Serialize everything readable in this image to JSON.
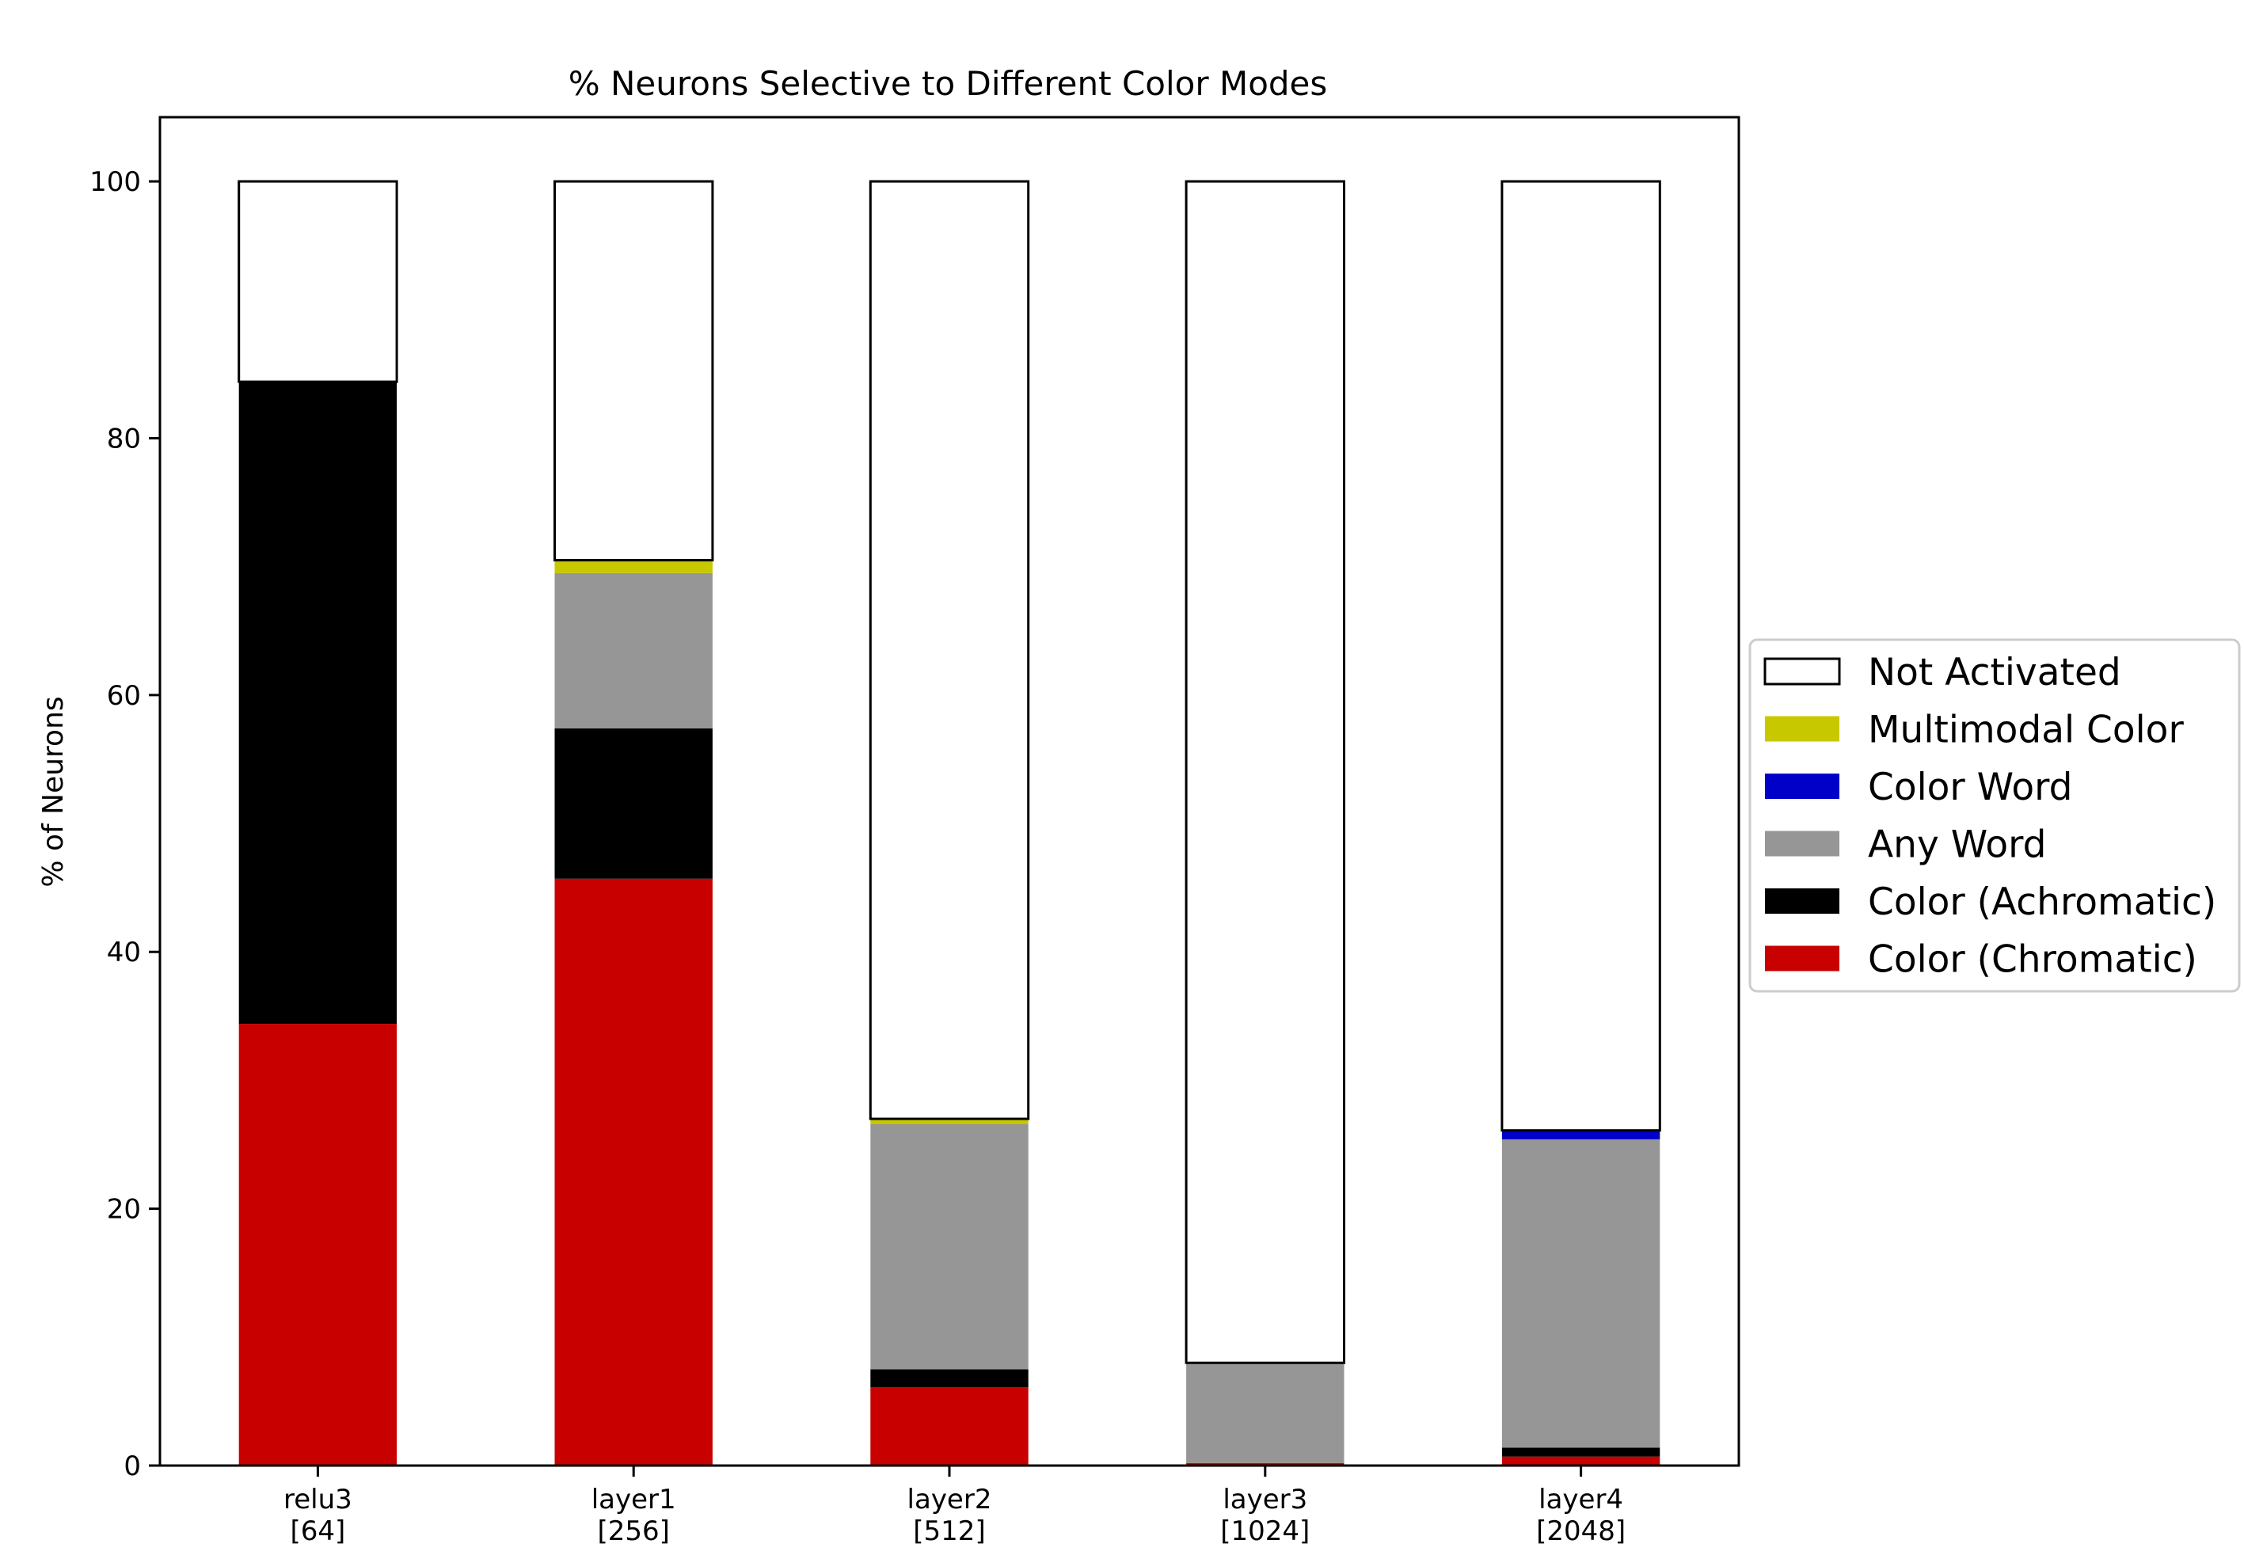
{
  "chart_data": {
    "type": "bar",
    "stacked": true,
    "title": "% Neurons Selective to Different Color Modes",
    "xlabel": "",
    "ylabel": "% of Neurons",
    "ylim": [
      0,
      105
    ],
    "yticks": [
      0,
      20,
      40,
      60,
      80,
      100
    ],
    "grid": false,
    "legend_position": "right-outside",
    "categories": [
      [
        "relu3",
        "[64]"
      ],
      [
        "layer1",
        "[256]"
      ],
      [
        "layer2",
        "[512]"
      ],
      [
        "layer3",
        "[1024]"
      ],
      [
        "layer4",
        "[2048]"
      ]
    ],
    "series": [
      {
        "name": "Color (Chromatic)",
        "color": "#c80000",
        "values": [
          34.4,
          45.7,
          6.1,
          0.2,
          0.7
        ]
      },
      {
        "name": "Color (Achromatic)",
        "color": "#000000",
        "values": [
          50.0,
          11.7,
          1.4,
          0.0,
          0.7
        ]
      },
      {
        "name": "Any Word",
        "color": "#969696",
        "values": [
          0.0,
          12.1,
          19.1,
          7.8,
          24.0
        ]
      },
      {
        "name": "Color Word",
        "color": "#0000c8",
        "values": [
          0.0,
          0.0,
          0.0,
          0.0,
          0.7
        ]
      },
      {
        "name": "Multimodal Color",
        "color": "#c8c800",
        "values": [
          0.0,
          1.0,
          0.4,
          0.0,
          0.0
        ]
      },
      {
        "name": "Not Activated",
        "color": "#ffffff",
        "outline": true,
        "values": [
          15.6,
          29.5,
          73.0,
          92.0,
          73.9
        ]
      }
    ],
    "legend_order": [
      "Not Activated",
      "Multimodal Color",
      "Color Word",
      "Any Word",
      "Color (Achromatic)",
      "Color (Chromatic)"
    ]
  }
}
